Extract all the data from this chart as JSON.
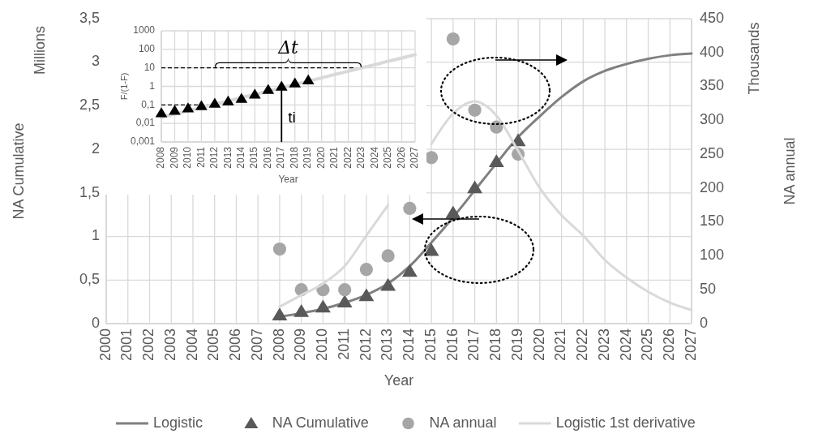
{
  "chart_data": [
    {
      "type": "line",
      "xlabel": "Year",
      "ylabel": "NA Cumulative",
      "y2label": "NA annual",
      "annotations": [
        "Millions",
        "Thousands"
      ],
      "categories": [
        "2000",
        "2001",
        "2002",
        "2003",
        "2004",
        "2005",
        "2006",
        "2007",
        "2008",
        "2009",
        "2010",
        "2011",
        "2012",
        "2013",
        "2014",
        "2015",
        "2016",
        "2017",
        "2018",
        "2019",
        "2020",
        "2021",
        "2022",
        "2023",
        "2024",
        "2025",
        "2026",
        "2027"
      ],
      "series": [
        {
          "name": "Logistic",
          "color": "#808080",
          "values": [
            null,
            null,
            null,
            null,
            null,
            null,
            null,
            null,
            0.08,
            0.12,
            0.17,
            0.24,
            0.33,
            0.46,
            0.66,
            0.93,
            1.22,
            1.53,
            1.84,
            2.14,
            2.38,
            2.6,
            2.78,
            2.9,
            2.98,
            3.04,
            3.08,
            3.1
          ]
        },
        {
          "name": "NA Cumulative",
          "type": "scatter",
          "marker": "triangle",
          "color": "#595959",
          "values": [
            null,
            null,
            null,
            null,
            null,
            null,
            null,
            null,
            0.1,
            0.14,
            0.19,
            0.25,
            0.32,
            0.44,
            0.6,
            0.84,
            1.27,
            1.56,
            1.86,
            2.1,
            null,
            null,
            null,
            null,
            null,
            null,
            null,
            null
          ]
        },
        {
          "name": "NA annual",
          "type": "scatter",
          "marker": "circle",
          "axis": "y2",
          "color": "#a6a6a6",
          "values": [
            null,
            null,
            null,
            null,
            null,
            null,
            null,
            null,
            110,
            50,
            50,
            50,
            80,
            100,
            170,
            245,
            420,
            315,
            290,
            250,
            null,
            null,
            null,
            null,
            null,
            null,
            null,
            null
          ]
        },
        {
          "name": "Logistic 1st derivative",
          "axis": "y2",
          "color": "#d9d9d9",
          "values": [
            null,
            null,
            null,
            null,
            null,
            null,
            null,
            null,
            25,
            42,
            59,
            85,
            130,
            175,
            null,
            265,
            310,
            328,
            307,
            255,
            200,
            160,
            130,
            94,
            68,
            47,
            31,
            20
          ]
        }
      ],
      "ylim": [
        0,
        3.5
      ],
      "yticks": [
        0,
        {
          "value": 0.5,
          "label": "0,5"
        },
        1,
        {
          "value": 1.5,
          "label": "1,5"
        },
        2,
        {
          "value": 2.5,
          "label": "2,5"
        },
        3,
        {
          "value": 3.5,
          "label": "3,5"
        }
      ],
      "y2lim": [
        0,
        450
      ],
      "y2ticks": [
        0,
        50,
        100,
        150,
        200,
        250,
        300,
        350,
        400,
        450
      ],
      "grid": true,
      "legend": "bottom"
    },
    {
      "type": "line",
      "xlabel": "Year",
      "ylabel": "F/(1-F)",
      "annotations": [
        "Δt",
        {
          "text": "ti",
          "x": "2017",
          "y": 1.0
        }
      ],
      "log": "y",
      "categories": [
        "2008",
        "2009",
        "2010",
        "2011",
        "2012",
        "2013",
        "2014",
        "2015",
        "2016",
        "2017",
        "2018",
        "2019",
        "2020",
        "2021",
        "2022",
        "2023",
        "2024",
        "2025",
        "2026",
        "2027"
      ],
      "series": [
        {
          "color": "#d9d9d9",
          "values": [
            0.021,
            0.032,
            0.048,
            0.073,
            0.11,
            0.16,
            0.25,
            0.37,
            0.56,
            0.84,
            1.27,
            1.9,
            2.9,
            4.4,
            6.6,
            10,
            15,
            23,
            34,
            52
          ]
        },
        {
          "type": "scatter",
          "marker": "triangle",
          "color": "#000000",
          "values": [
            0.037,
            0.05,
            0.067,
            0.09,
            0.12,
            0.16,
            0.22,
            0.37,
            0.67,
            1.0,
            1.5,
            2.2,
            null,
            null,
            null,
            null,
            null,
            null,
            null,
            null
          ]
        }
      ],
      "ylim": [
        0.001,
        1000
      ],
      "yticks": [
        {
          "value": 0.001,
          "label": "0,001"
        },
        {
          "value": 0.01,
          "label": "0,01"
        },
        {
          "value": 0.1,
          "label": "0,1"
        },
        1,
        10,
        100,
        1000
      ],
      "ref_lines": [
        {
          "axis": "y",
          "value": 10,
          "line_style": "dashed",
          "color": "#000000"
        },
        {
          "axis": "y",
          "value": 0.1,
          "line_style": "dashed",
          "color": "#000000"
        }
      ],
      "grid": true
    }
  ]
}
